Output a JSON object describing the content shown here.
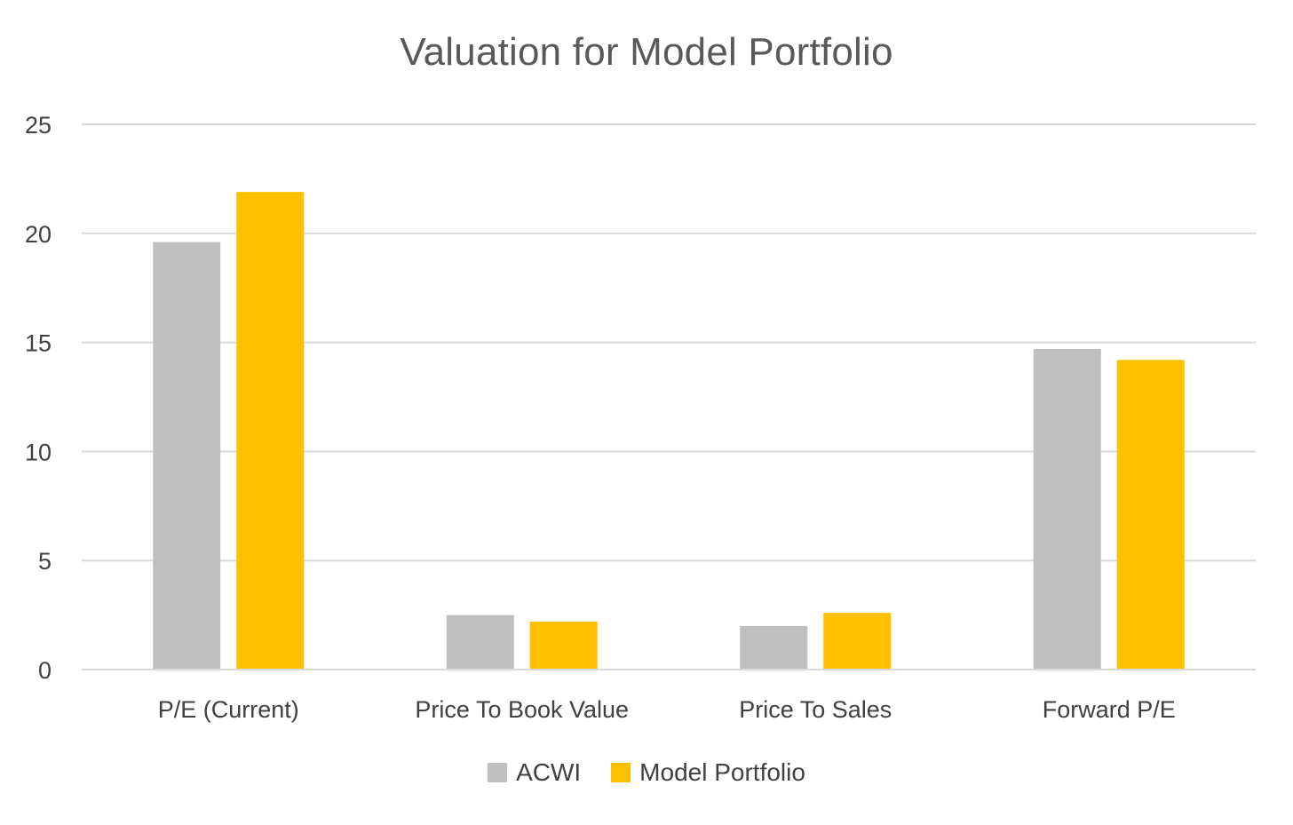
{
  "chart_data": {
    "type": "bar",
    "title": "Valuation for Model Portfolio",
    "categories": [
      "P/E (Current)",
      "Price To Book Value",
      "Price To Sales",
      "Forward P/E"
    ],
    "series": [
      {
        "name": "ACWI",
        "color": "#BFBFBF",
        "values": [
          19.6,
          2.5,
          2.0,
          14.7
        ]
      },
      {
        "name": "Model Portfolio",
        "color": "#FFC000",
        "values": [
          21.9,
          2.2,
          2.6,
          14.2
        ]
      }
    ],
    "ylim": [
      0,
      25
    ],
    "yticks": [
      0,
      5,
      10,
      15,
      20,
      25
    ],
    "grid": true,
    "legend": "bottom"
  }
}
